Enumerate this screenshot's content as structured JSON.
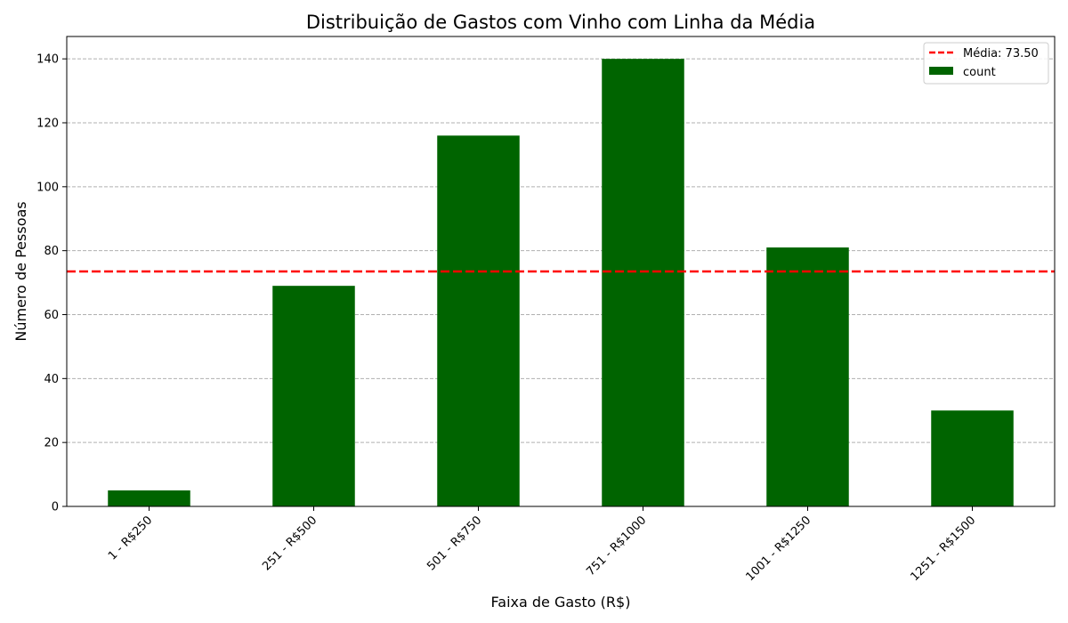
{
  "chart_data": {
    "type": "bar",
    "title": "Distribuição de Gastos com Vinho com Linha da Média",
    "xlabel": "Faixa de Gasto (R$)",
    "ylabel": "Número de Pessoas",
    "categories": [
      "1 - R$250",
      "251 - R$500",
      "501 - R$750",
      "751 - R$1000",
      "1001 - R$1250",
      "1251 - R$1500"
    ],
    "series": [
      {
        "name": "count",
        "values": [
          5,
          69,
          116,
          140,
          81,
          30
        ],
        "color": "#006400"
      }
    ],
    "mean_line": {
      "label": "Média: 73.50",
      "value": 73.5,
      "color": "#ff0000",
      "style": "dashed"
    },
    "ylim": [
      0,
      147
    ],
    "yticks": [
      0,
      20,
      40,
      60,
      80,
      100,
      120,
      140
    ],
    "grid": "y-dashed",
    "legend_position": "top-right"
  }
}
